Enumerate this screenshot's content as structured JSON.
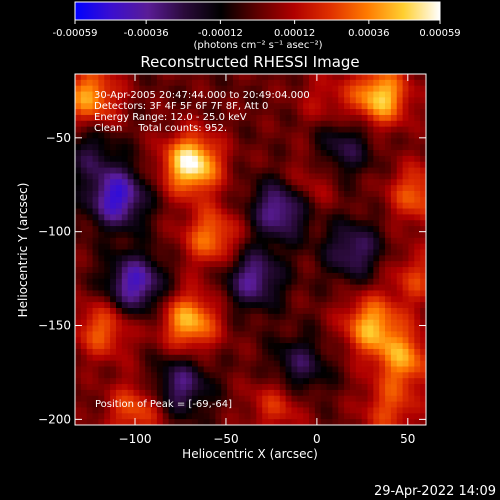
{
  "colorbar": {
    "ticks": [
      "-0.00059",
      "-0.00036",
      "-0.00012",
      "0.00012",
      "0.00036",
      "0.00059"
    ],
    "tick_values": [
      -0.00059,
      -0.00036,
      -0.00012,
      0.00012,
      0.00036,
      0.00059
    ],
    "range": [
      -0.00059,
      0.00059
    ],
    "units_label": "(photons cm⁻² s⁻¹ asec⁻²)",
    "colormap": [
      "#0000ff",
      "#3b0fcf",
      "#5a1c96",
      "#2a0a3a",
      "#000000",
      "#5e0000",
      "#b00000",
      "#e03000",
      "#ff7a00",
      "#ffcf30",
      "#ffffff"
    ]
  },
  "title": "Reconstructed RHESSI Image",
  "info_lines": [
    "30-Apr-2005 20:47:44.000 to 20:49:04.000",
    "Detectors: 3F 4F 5F 6F 7F 8F, Att 0",
    "Energy Range: 12.0 - 25.0 keV",
    "Clean     Total counts: 952."
  ],
  "peak_label": "Position of Peak = [-69,-64]",
  "footer_date": "29-Apr-2022 14:09",
  "chart_data": {
    "type": "heatmap",
    "title": "Reconstructed RHESSI Image",
    "xlabel": "Heliocentric X (arcsec)",
    "ylabel": "Heliocentric Y (arcsec)",
    "xlim": [
      -133,
      60
    ],
    "ylim": [
      -203,
      -16
    ],
    "x_ticks": [
      -100,
      -50,
      0,
      50
    ],
    "y_ticks": [
      -50,
      -100,
      -150,
      -200
    ],
    "x_tick_labels": [
      "−100",
      "−50",
      "0",
      "50"
    ],
    "y_tick_labels": [
      "−50",
      "−100",
      "−150",
      "−200"
    ],
    "peak_position": [
      -69,
      -64
    ],
    "hotspots": [
      {
        "x": -69,
        "y": -64,
        "value": 0.00059
      },
      {
        "x": 35,
        "y": -28,
        "value": 0.00048
      },
      {
        "x": -125,
        "y": -28,
        "value": 0.0004
      },
      {
        "x": -58,
        "y": -103,
        "value": 0.00034
      },
      {
        "x": 55,
        "y": -80,
        "value": 0.0003
      },
      {
        "x": -70,
        "y": -148,
        "value": 0.00044
      },
      {
        "x": 30,
        "y": -150,
        "value": 0.00042
      },
      {
        "x": 48,
        "y": -168,
        "value": 0.00036
      },
      {
        "x": -118,
        "y": -152,
        "value": 0.0003
      },
      {
        "x": -100,
        "y": -195,
        "value": 0.00028
      },
      {
        "x": -22,
        "y": -192,
        "value": 0.00022
      },
      {
        "x": -5,
        "y": -75,
        "value": 0.00016
      },
      {
        "x": 5,
        "y": -30,
        "value": 0.00014
      },
      {
        "x": 55,
        "y": -125,
        "value": 0.00022
      },
      {
        "x": 40,
        "y": -195,
        "value": 0.00025
      }
    ],
    "coldspots": [
      {
        "x": -110,
        "y": -82,
        "value": -0.00048
      },
      {
        "x": -20,
        "y": -88,
        "value": -0.0004
      },
      {
        "x": -100,
        "y": -128,
        "value": -0.00044
      },
      {
        "x": -35,
        "y": -125,
        "value": -0.00036
      },
      {
        "x": 20,
        "y": -110,
        "value": -0.0003
      },
      {
        "x": -75,
        "y": -182,
        "value": -0.00032
      },
      {
        "x": -10,
        "y": -172,
        "value": -0.00026
      },
      {
        "x": 15,
        "y": -55,
        "value": -0.00024
      },
      {
        "x": -125,
        "y": -58,
        "value": -0.0002
      }
    ]
  }
}
